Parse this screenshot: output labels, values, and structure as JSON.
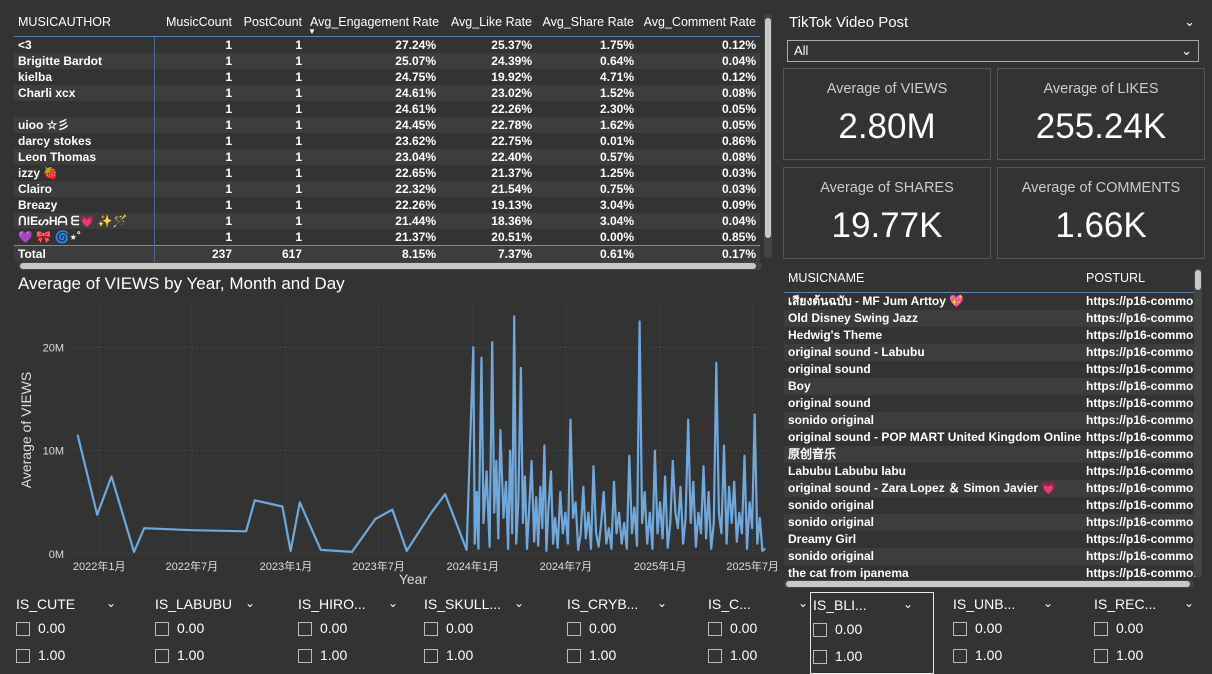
{
  "author_table": {
    "headers": [
      "MUSICAUTHOR",
      "MusicCount",
      "PostCount",
      "Avg_Engagement Rate",
      "Avg_Like Rate",
      "Avg_Share Rate",
      "Avg_Comment Rate"
    ],
    "sort_indicator": "▼",
    "rows": [
      [
        "<3",
        "1",
        "1",
        "27.24%",
        "25.37%",
        "1.75%",
        "0.12%"
      ],
      [
        "Brigitte Bardot",
        "1",
        "1",
        "25.07%",
        "24.39%",
        "0.64%",
        "0.04%"
      ],
      [
        "kielba",
        "1",
        "1",
        "24.75%",
        "19.92%",
        "4.71%",
        "0.12%"
      ],
      [
        "Charli xcx",
        "1",
        "1",
        "24.61%",
        "23.02%",
        "1.52%",
        "0.08%"
      ],
      [
        "",
        "1",
        "1",
        "24.61%",
        "22.26%",
        "2.30%",
        "0.05%"
      ],
      [
        "uioo ☆彡",
        "1",
        "1",
        "24.45%",
        "22.78%",
        "1.62%",
        "0.05%"
      ],
      [
        "darcy stokes",
        "1",
        "1",
        "23.62%",
        "22.75%",
        "0.01%",
        "0.86%"
      ],
      [
        "Leon Thomas",
        "1",
        "1",
        "23.04%",
        "22.40%",
        "0.57%",
        "0.08%"
      ],
      [
        "izzy 🍓",
        "1",
        "1",
        "22.65%",
        "21.37%",
        "1.25%",
        "0.03%"
      ],
      [
        "Clairo",
        "1",
        "1",
        "22.32%",
        "21.54%",
        "0.75%",
        "0.03%"
      ],
      [
        "Breazy",
        "1",
        "1",
        "22.26%",
        "19.13%",
        "3.04%",
        "0.09%"
      ],
      [
        "ᑎIEᔕHᗩ ᗴ💗 ✨🪄",
        "1",
        "1",
        "21.44%",
        "18.36%",
        "3.04%",
        "0.04%"
      ],
      [
        "💜 🎀 🌀⋆˚",
        "1",
        "1",
        "21.37%",
        "20.51%",
        "0.00%",
        "0.85%"
      ]
    ],
    "total": [
      "Total",
      "237",
      "617",
      "8.15%",
      "7.37%",
      "0.61%",
      "0.17%"
    ]
  },
  "chart": {
    "title": "Average of VIEWS by Year, Month and Day"
  },
  "chart_data": {
    "type": "line",
    "title": "Average of VIEWS by Year, Month and Day",
    "xlabel": "Year",
    "ylabel": "Average of VIEWS",
    "y_ticks": [
      "0M",
      "10M",
      "20M"
    ],
    "x_ticks": [
      "2022年1月",
      "2022年7月",
      "2023年1月",
      "2023年7月",
      "2024年1月",
      "2024年7月",
      "2025年1月",
      "2025年7月"
    ],
    "ylim": [
      0,
      24000000
    ],
    "series_color": "#6fa8dc",
    "x_range": [
      "2021-11-01",
      "2025-07-31"
    ],
    "x": [
      "2021-11-20",
      "2021-12-28",
      "2022-01-25",
      "2022-03-10",
      "2022-03-30",
      "2022-07-01",
      "2022-10-15",
      "2022-11-01",
      "2022-12-25",
      "2023-01-10",
      "2023-01-28",
      "2023-03-10",
      "2023-05-10",
      "2023-06-25",
      "2023-07-28",
      "2023-08-25",
      "2023-10-12",
      "2023-11-08",
      "2023-12-20",
      "2024-01-02",
      "2024-01-05",
      "2024-01-09",
      "2024-01-12",
      "2024-01-18",
      "2024-01-22",
      "2024-01-28",
      "2024-02-03",
      "2024-02-08",
      "2024-02-12",
      "2024-02-16",
      "2024-02-20",
      "2024-02-24",
      "2024-03-01",
      "2024-03-06",
      "2024-03-10",
      "2024-03-14",
      "2024-03-18",
      "2024-03-22",
      "2024-03-26",
      "2024-03-30",
      "2024-04-04",
      "2024-04-08",
      "2024-04-12",
      "2024-04-16",
      "2024-04-20",
      "2024-04-25",
      "2024-04-30",
      "2024-05-04",
      "2024-05-08",
      "2024-05-12",
      "2024-05-16",
      "2024-05-20",
      "2024-05-24",
      "2024-05-28",
      "2024-06-02",
      "2024-06-06",
      "2024-06-10",
      "2024-06-15",
      "2024-06-20",
      "2024-06-25",
      "2024-06-30",
      "2024-07-05",
      "2024-07-10",
      "2024-07-15",
      "2024-07-20",
      "2024-07-25",
      "2024-07-30",
      "2024-08-04",
      "2024-08-09",
      "2024-08-14",
      "2024-08-19",
      "2024-08-24",
      "2024-08-29",
      "2024-09-03",
      "2024-09-08",
      "2024-09-13",
      "2024-09-18",
      "2024-09-23",
      "2024-09-28",
      "2024-10-03",
      "2024-10-08",
      "2024-10-13",
      "2024-10-18",
      "2024-10-23",
      "2024-10-28",
      "2024-11-02",
      "2024-11-07",
      "2024-11-12",
      "2024-11-17",
      "2024-11-22",
      "2024-11-27",
      "2024-12-02",
      "2024-12-07",
      "2024-12-12",
      "2024-12-17",
      "2024-12-22",
      "2024-12-27",
      "2025-01-01",
      "2025-01-06",
      "2025-01-11",
      "2025-01-16",
      "2025-01-21",
      "2025-01-26",
      "2025-01-31",
      "2025-02-05",
      "2025-02-10",
      "2025-02-15",
      "2025-02-20",
      "2025-02-25",
      "2025-03-02",
      "2025-03-07",
      "2025-03-12",
      "2025-03-17",
      "2025-03-22",
      "2025-03-27",
      "2025-04-01",
      "2025-04-06",
      "2025-04-11",
      "2025-04-16",
      "2025-04-21",
      "2025-04-26",
      "2025-05-01",
      "2025-05-06",
      "2025-05-11",
      "2025-05-16",
      "2025-05-21",
      "2025-05-26",
      "2025-05-31",
      "2025-06-05",
      "2025-06-10",
      "2025-06-15",
      "2025-06-20",
      "2025-06-25",
      "2025-06-30",
      "2025-07-05",
      "2025-07-10",
      "2025-07-15",
      "2025-07-20",
      "2025-07-25"
    ],
    "values": [
      11.5,
      3.8,
      7.5,
      0.2,
      2.5,
      2.3,
      2.2,
      5.2,
      4.6,
      0.3,
      5.0,
      0.4,
      0.2,
      3.4,
      4.3,
      0.3,
      4.0,
      5.8,
      0.4,
      20.0,
      1.0,
      6.0,
      0.5,
      19.0,
      3.0,
      8.0,
      0.7,
      20.5,
      4.0,
      9.0,
      1.5,
      12.0,
      3.5,
      7.0,
      0.5,
      10.0,
      2.0,
      23.0,
      1.0,
      5.0,
      18.0,
      3.0,
      7.5,
      0.5,
      4.0,
      9.0,
      1.2,
      5.5,
      0.8,
      6.5,
      2.5,
      10.5,
      0.3,
      4.5,
      8.0,
      1.0,
      3.5,
      0.6,
      6.0,
      2.0,
      4.0,
      1.0,
      13.0,
      3.5,
      5.0,
      0.4,
      2.0,
      6.5,
      1.5,
      4.0,
      0.5,
      8.5,
      2.0,
      0.7,
      3.0,
      6.0,
      1.0,
      2.5,
      0.5,
      7.0,
      2.0,
      4.0,
      1.0,
      3.0,
      0.5,
      9.5,
      2.0,
      4.5,
      0.8,
      22.5,
      3.0,
      6.0,
      1.0,
      4.0,
      0.5,
      10.0,
      2.0,
      5.0,
      1.5,
      7.5,
      0.6,
      3.0,
      9.0,
      4.0,
      2.5,
      6.5,
      1.0,
      3.5,
      13.0,
      3.0,
      7.0,
      0.7,
      4.0,
      2.0,
      8.5,
      1.5,
      6.0,
      0.5,
      3.0,
      18.5,
      4.0,
      2.0,
      10.5,
      1.0,
      6.5,
      3.0,
      7.0,
      1.2,
      4.0,
      2.0,
      9.5,
      0.5,
      5.0,
      2.5,
      13.5,
      1.0,
      3.5,
      0.3,
      0.5
    ]
  },
  "slicer": {
    "title": "TikTok Video Post",
    "selected": "All"
  },
  "cards": [
    {
      "label": "Average of VIEWS",
      "value": "2.80M"
    },
    {
      "label": "Average of LIKES",
      "value": "255.24K"
    },
    {
      "label": "Average of SHARES",
      "value": "19.77K"
    },
    {
      "label": "Average of COMMENTS",
      "value": "1.66K"
    }
  ],
  "music_table": {
    "headers": [
      "MUSICNAME",
      "POSTURL"
    ],
    "rows": [
      [
        "เสียงต้นฉบับ - MF Jum Arttoy 💖",
        "https://p16-common"
      ],
      [
        "Old Disney Swing Jazz",
        "https://p16-common"
      ],
      [
        "Hedwig's Theme",
        "https://p16-common"
      ],
      [
        "original sound - Labubu",
        "https://p16-common"
      ],
      [
        "original sound",
        "https://p16-common"
      ],
      [
        "Boy",
        "https://p16-common"
      ],
      [
        "original sound",
        "https://p16-common"
      ],
      [
        "sonido original",
        "https://p16-common"
      ],
      [
        "original sound - POP MART United Kingdom Online",
        "https://p16-common"
      ],
      [
        "原创音乐",
        "https://p16-common"
      ],
      [
        "Labubu Labubu labu",
        "https://p16-common"
      ],
      [
        "original sound - Zara Lopez ＆ Simon Javier 💗",
        "https://p16-common"
      ],
      [
        "sonido original",
        "https://p16-common"
      ],
      [
        "sonido original",
        "https://p16-common"
      ],
      [
        "Dreamy Girl",
        "https://p16-common"
      ],
      [
        "sonido original",
        "https://p16-common"
      ],
      [
        "the cat from ipanema",
        "https://p16-common"
      ]
    ]
  },
  "filters": [
    {
      "title": "IS_CUTE",
      "options": [
        "0.00",
        "1.00"
      ]
    },
    {
      "title": "IS_LABUBU",
      "options": [
        "0.00",
        "1.00"
      ]
    },
    {
      "title": "IS_HIRO...",
      "options": [
        "0.00",
        "1.00"
      ]
    },
    {
      "title": "IS_SKULL...",
      "options": [
        "0.00",
        "1.00"
      ]
    },
    {
      "title": "IS_CRYB...",
      "options": [
        "0.00",
        "1.00"
      ]
    },
    {
      "title": "IS_C...",
      "options": [
        "0.00",
        "1.00"
      ]
    },
    {
      "title": "IS_BLI...",
      "options": [
        "0.00",
        "1.00"
      ]
    },
    {
      "title": "IS_UNB...",
      "options": [
        "0.00",
        "1.00"
      ]
    },
    {
      "title": "IS_REC...",
      "options": [
        "0.00",
        "1.00"
      ]
    }
  ]
}
